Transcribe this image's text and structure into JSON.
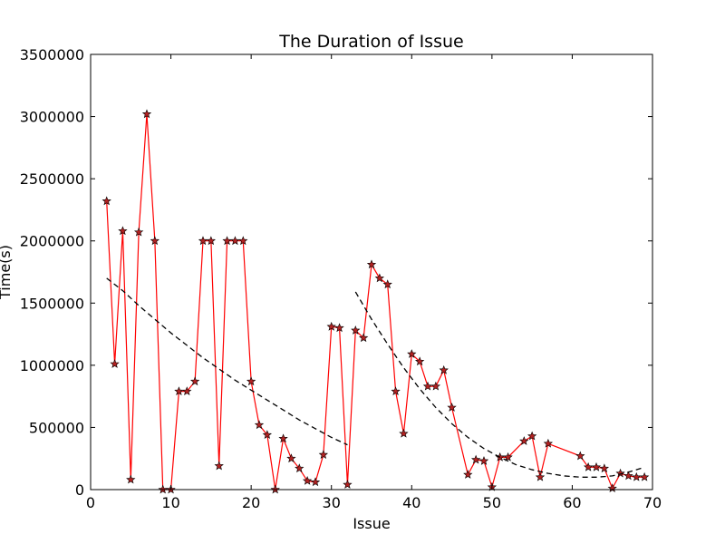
{
  "chart_data": {
    "type": "line",
    "title": "The Duration of Issue",
    "xlabel": "Issue",
    "ylabel": "Time(s)",
    "xlim": [
      0,
      70
    ],
    "ylim": [
      0,
      3500000
    ],
    "x_ticks": [
      0,
      10,
      20,
      30,
      40,
      50,
      60,
      70
    ],
    "y_ticks": [
      0,
      500000,
      1000000,
      1500000,
      2000000,
      2500000,
      3000000,
      3500000
    ],
    "x_tick_labels": [
      "0",
      "10",
      "20",
      "30",
      "40",
      "50",
      "60",
      "70"
    ],
    "y_tick_labels": [
      "0",
      "500000",
      "1000000",
      "1500000",
      "2000000",
      "2500000",
      "3000000",
      "3500000"
    ],
    "grid": false,
    "legend": "none",
    "series": [
      {
        "style": "solid line with star markers",
        "line_color": "#ff0000",
        "marker_color": "#b22222",
        "marker": "star",
        "x": [
          2,
          3,
          4,
          5,
          6,
          7,
          8,
          9,
          10,
          11,
          12,
          13,
          14,
          15,
          16,
          17,
          18,
          19,
          20,
          21,
          22,
          23,
          24,
          25,
          26,
          27,
          28,
          29,
          30,
          31,
          32,
          33,
          34,
          35,
          36,
          37,
          38,
          39,
          40,
          41,
          42,
          43,
          44,
          45,
          47,
          48,
          49,
          50,
          51,
          52,
          54,
          55,
          56,
          57,
          61,
          62,
          63,
          64,
          65,
          66,
          67,
          68,
          69
        ],
        "y": [
          2320000,
          1010000,
          2080000,
          80000,
          2070000,
          3020000,
          2000000,
          0,
          0,
          790000,
          790000,
          870000,
          2000000,
          2000000,
          190000,
          2000000,
          2000000,
          2000000,
          870000,
          520000,
          440000,
          0,
          410000,
          250000,
          170000,
          70000,
          60000,
          280000,
          1310000,
          1300000,
          40000,
          1280000,
          1220000,
          1810000,
          1700000,
          1650000,
          790000,
          450000,
          1090000,
          1030000,
          830000,
          830000,
          960000,
          660000,
          120000,
          240000,
          230000,
          20000,
          260000,
          260000,
          390000,
          430000,
          100000,
          370000,
          270000,
          180000,
          180000,
          170000,
          10000,
          130000,
          110000,
          100000,
          100000
        ]
      },
      {
        "style": "dashed trend line",
        "line_color": "#000000",
        "x": [
          2,
          4,
          6,
          8,
          10,
          12,
          14,
          16,
          18,
          20,
          22,
          24,
          26,
          28,
          30,
          32
        ],
        "y": [
          1700000,
          1600000,
          1480000,
          1370000,
          1260000,
          1160000,
          1060000,
          970000,
          880000,
          800000,
          720000,
          640000,
          560000,
          490000,
          420000,
          360000
        ]
      },
      {
        "style": "dashed trend line",
        "line_color": "#000000",
        "x": [
          33,
          35,
          37,
          39,
          41,
          43,
          45,
          47,
          49,
          51,
          53,
          55,
          57,
          59,
          61,
          63,
          65,
          67,
          69
        ],
        "y": [
          1590000,
          1370000,
          1170000,
          980000,
          810000,
          660000,
          530000,
          420000,
          330000,
          260000,
          200000,
          160000,
          130000,
          110000,
          100000,
          100000,
          110000,
          140000,
          180000
        ]
      }
    ]
  }
}
